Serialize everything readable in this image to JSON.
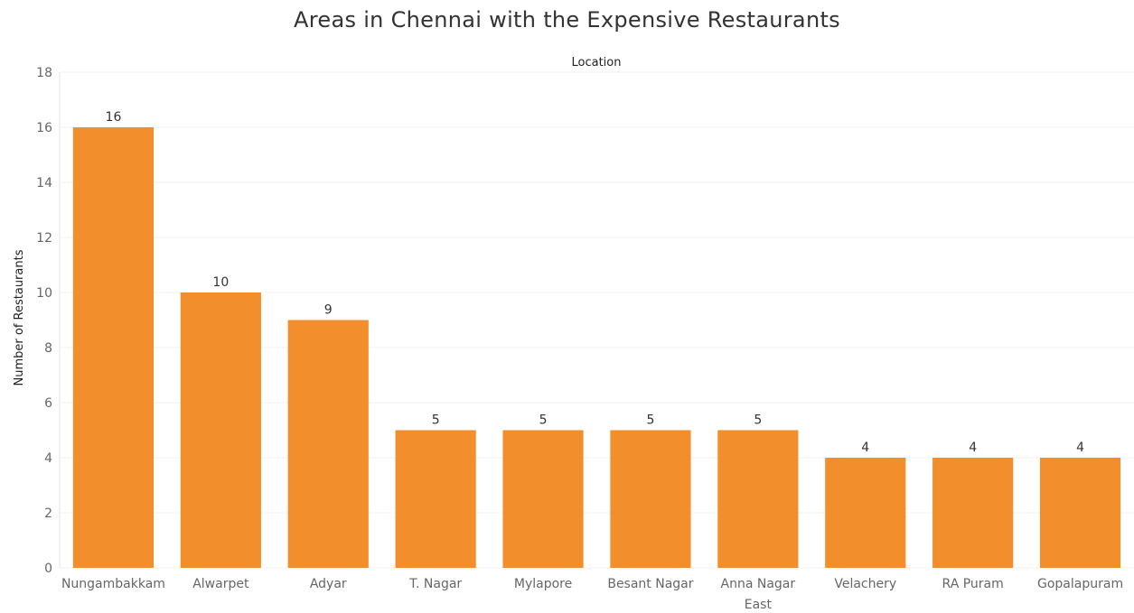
{
  "chart_data": {
    "type": "bar",
    "title": "Areas in Chennai with the Expensive Restaurants",
    "xlabel": "Location",
    "ylabel": "Number of Restaurants",
    "categories": [
      [
        "Nungambakkam"
      ],
      [
        "Alwarpet"
      ],
      [
        "Adyar"
      ],
      [
        "T. Nagar"
      ],
      [
        "Mylapore"
      ],
      [
        "Besant Nagar"
      ],
      [
        "Anna Nagar",
        "East"
      ],
      [
        "Velachery"
      ],
      [
        "RA Puram"
      ],
      [
        "Gopalapuram"
      ]
    ],
    "values": [
      16,
      10,
      9,
      5,
      5,
      5,
      5,
      4,
      4,
      4
    ],
    "ylim": [
      0,
      18
    ],
    "yticks": [
      0,
      2,
      4,
      6,
      8,
      10,
      12,
      14,
      16,
      18
    ],
    "grid": true,
    "bar_color": "#f28e2b",
    "grid_color": "#f0f0f0"
  }
}
